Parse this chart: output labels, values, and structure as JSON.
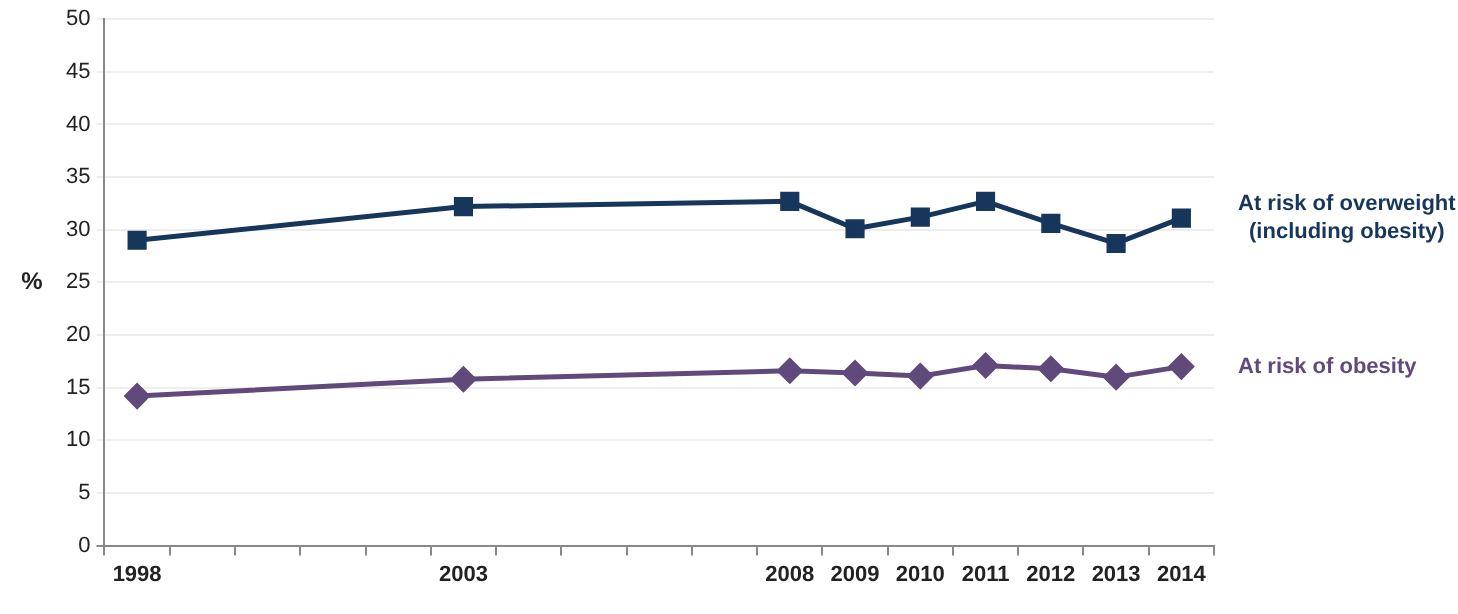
{
  "chart_data": {
    "type": "line",
    "ylabel": "%",
    "categories": [
      "1998",
      null,
      null,
      null,
      null,
      "2003",
      null,
      null,
      null,
      null,
      "2008",
      "2009",
      "2010",
      "2011",
      "2012",
      "2013",
      "2014"
    ],
    "series": [
      {
        "name": "At risk of overweight (including obesity)",
        "color": "#16365c",
        "marker": "square",
        "values": [
          29.0,
          null,
          null,
          null,
          null,
          32.2,
          null,
          null,
          null,
          null,
          32.7,
          30.1,
          31.2,
          32.7,
          30.6,
          28.7,
          31.1
        ]
      },
      {
        "name": "At risk of obesity",
        "color": "#604a7b",
        "marker": "diamond",
        "values": [
          14.2,
          null,
          null,
          null,
          null,
          15.8,
          null,
          null,
          null,
          null,
          16.6,
          16.4,
          16.1,
          17.1,
          16.8,
          16.0,
          17.0
        ]
      }
    ],
    "ylim": [
      0,
      50
    ],
    "yticks": [
      0,
      5,
      10,
      15,
      20,
      25,
      30,
      35,
      40,
      45,
      50
    ],
    "grid": "y",
    "legend": false
  }
}
